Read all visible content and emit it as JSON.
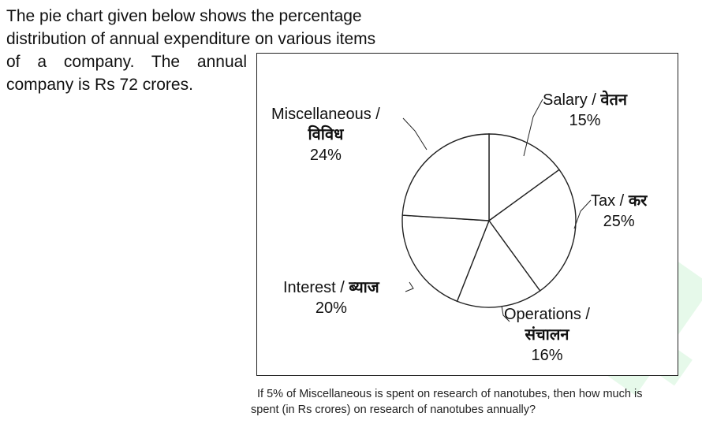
{
  "intro": {
    "line1": "The pie chart given below shows the percentage",
    "line2": "distribution of annual expenditure on various items",
    "line3": "of a company. The annual",
    "line4": "company is Rs 72 crores."
  },
  "chart_data": {
    "type": "pie",
    "slices": [
      {
        "en": "Salary /",
        "hi": "वेतन",
        "value": 15,
        "pct": "15%"
      },
      {
        "en": "Tax /",
        "hi": "कर",
        "value": 25,
        "pct": "25%"
      },
      {
        "en": "Operations /",
        "hi": "संचालन",
        "value": 16,
        "pct": "16%"
      },
      {
        "en": "Interest /",
        "hi": "ब्याज",
        "value": 20,
        "pct": "20%"
      },
      {
        "en": "Miscellaneous /",
        "hi": "विविध",
        "value": 24,
        "pct": "24%"
      }
    ],
    "start_angle_deg": 0,
    "direction": "clockwise",
    "slice_fill": "#ffffff",
    "stroke_color": "#222222"
  },
  "question": {
    "line1": "If 5% of Miscellaneous is spent on research of nanotubes, then how much is",
    "line2": "spent (in Rs crores) on research of nanotubes annually?"
  },
  "colors": {
    "watermark": "#e6f9ea"
  }
}
